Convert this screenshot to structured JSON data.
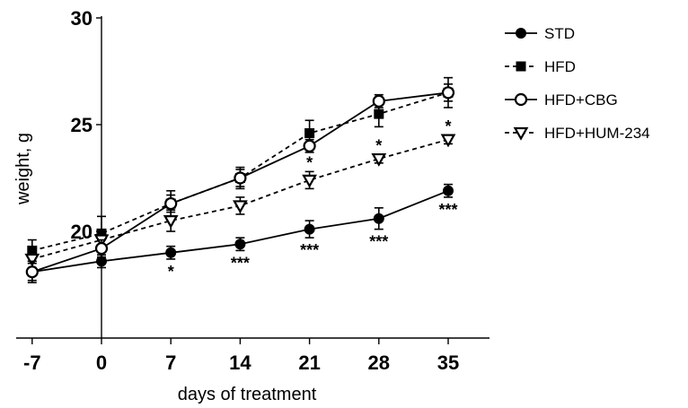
{
  "chart_data": {
    "type": "line",
    "title": "",
    "xlabel": "days of treatment",
    "ylabel": "weight, g",
    "x": [
      -7,
      0,
      7,
      14,
      21,
      28,
      35
    ],
    "x_ticks": [
      "-7",
      "0",
      "7",
      "14",
      "21",
      "28",
      "35"
    ],
    "y_ticks": [
      "20",
      "25",
      "30"
    ],
    "y_tick_values": [
      20,
      25,
      30
    ],
    "ylim": [
      15,
      30
    ],
    "grid": false,
    "legend_position": "right",
    "series": [
      {
        "name": "STD",
        "marker": "filled-circle",
        "line": "solid",
        "values": [
          18.1,
          18.6,
          19.0,
          19.4,
          20.1,
          20.6,
          21.9
        ],
        "errors": [
          0.4,
          0.3,
          0.3,
          0.3,
          0.4,
          0.5,
          0.3
        ],
        "significance": [
          "",
          "",
          "*",
          "***",
          "***",
          "***",
          "***"
        ]
      },
      {
        "name": "HFD",
        "marker": "filled-square",
        "line": "dashed",
        "values": [
          19.1,
          19.9,
          21.3,
          22.5,
          24.6,
          25.5,
          26.5
        ],
        "errors": [
          0.5,
          0.8,
          0.6,
          0.5,
          0.6,
          0.6,
          0.7
        ],
        "significance": [
          "",
          "",
          "",
          "",
          "",
          "",
          ""
        ]
      },
      {
        "name": "HFD+CBG",
        "marker": "open-circle",
        "line": "solid",
        "values": [
          18.1,
          19.2,
          21.3,
          22.5,
          24.0,
          26.1,
          26.5
        ],
        "errors": [
          0.5,
          0.4,
          0.4,
          0.4,
          0.3,
          0.3,
          0.4
        ],
        "significance": [
          "",
          "",
          "",
          "",
          "",
          "",
          ""
        ]
      },
      {
        "name": "HFD+HUM-234",
        "marker": "open-triangle-down",
        "line": "dashed",
        "values": [
          18.7,
          19.6,
          20.5,
          21.2,
          22.4,
          23.4,
          24.3
        ],
        "errors": [
          0.4,
          0.4,
          0.5,
          0.4,
          0.4,
          0.2,
          0.2
        ],
        "significance": [
          "",
          "",
          "",
          "",
          "*",
          "*",
          "*"
        ]
      }
    ]
  }
}
